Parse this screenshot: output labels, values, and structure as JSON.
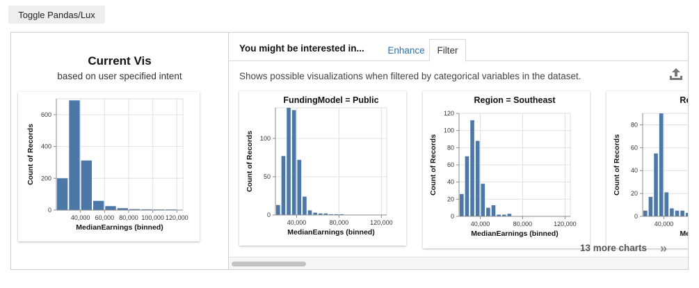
{
  "toolbar": {
    "toggle_label": "Toggle Pandas/Lux"
  },
  "current_vis": {
    "title": "Current Vis",
    "subtitle": "based on user specified intent"
  },
  "recommendations": {
    "heading": "You might be interested in...",
    "tabs": [
      {
        "label": "Enhance",
        "active": false
      },
      {
        "label": "Filter",
        "active": true
      }
    ],
    "description": "Shows possible visualizations when filtered by categorical variables in the dataset.",
    "export_icon": "upload-icon",
    "more_label": "13 more charts",
    "more_icon": "double-chevron-right-icon"
  },
  "colors": {
    "bar": "#4c78a8",
    "tab_link": "#2c6fae",
    "grid": "#e0e0e0"
  },
  "chart_data": [
    {
      "type": "bar",
      "title": "",
      "xlabel": "MedianEarnings (binned)",
      "ylabel": "Count of Records",
      "xlim": [
        20000,
        125000
      ],
      "ylim": [
        0,
        700
      ],
      "bin_width": 10000,
      "x_ticks": [
        "40,000",
        "60,000",
        "80,000",
        "100,000",
        "120,000"
      ],
      "x_tick_values": [
        40000,
        60000,
        80000,
        100000,
        120000
      ],
      "y_ticks": [
        "0",
        "200",
        "400",
        "600"
      ],
      "y_tick_values": [
        0,
        200,
        400,
        600
      ],
      "x": [
        25000,
        35000,
        45000,
        55000,
        65000,
        75000,
        85000,
        95000,
        105000,
        115000
      ],
      "values": [
        200,
        690,
        312,
        58,
        25,
        12,
        6,
        5,
        4,
        4
      ]
    },
    {
      "type": "bar",
      "title": "FundingModel = Public",
      "xlabel": "MedianEarnings (binned)",
      "ylabel": "Count of Records",
      "xlim": [
        20000,
        125000
      ],
      "ylim": [
        0,
        140
      ],
      "bin_width": 5000,
      "x_ticks": [
        "40,000",
        "80,000",
        "120,000"
      ],
      "x_tick_values": [
        40000,
        80000,
        120000
      ],
      "y_ticks": [
        "0",
        "50",
        "100"
      ],
      "y_tick_values": [
        0,
        50,
        100
      ],
      "x": [
        22500,
        27500,
        32500,
        37500,
        42500,
        47500,
        52500,
        57500,
        62500,
        67500,
        72500,
        77500,
        82500
      ],
      "values": [
        13,
        77,
        142,
        137,
        72,
        24,
        6,
        3,
        2,
        2,
        1,
        1,
        1
      ]
    },
    {
      "type": "bar",
      "title": "Region = Southeast",
      "xlabel": "MedianEarnings (binned)",
      "ylabel": "Count of Records",
      "xlim": [
        20000,
        125000
      ],
      "ylim": [
        0,
        120
      ],
      "bin_width": 5000,
      "x_ticks": [
        "40,000",
        "80,000",
        "120,000"
      ],
      "x_tick_values": [
        40000,
        80000,
        120000
      ],
      "y_ticks": [
        "0",
        "20",
        "40",
        "60",
        "80",
        "100",
        "120"
      ],
      "y_tick_values": [
        0,
        20,
        40,
        60,
        80,
        100,
        120
      ],
      "x": [
        22500,
        27500,
        32500,
        37500,
        42500,
        47500,
        52500,
        57500,
        62500,
        67500
      ],
      "values": [
        26,
        70,
        112,
        88,
        38,
        10,
        13,
        2,
        2,
        3
      ]
    },
    {
      "type": "bar",
      "title": "Region = ",
      "xlabel": "MedianEar",
      "ylabel": "Count of Records",
      "xlim": [
        20000,
        125000
      ],
      "ylim": [
        0,
        90
      ],
      "bin_width": 5000,
      "x_ticks": [
        "40,000"
      ],
      "x_tick_values": [
        40000
      ],
      "y_ticks": [
        "0",
        "20",
        "40",
        "60",
        "80"
      ],
      "y_tick_values": [
        0,
        20,
        40,
        60,
        80
      ],
      "x": [
        22500,
        27500,
        32500,
        37500,
        42500,
        47500,
        52500,
        57500,
        62500
      ],
      "values": [
        5,
        17,
        55,
        90,
        21,
        7,
        5,
        5,
        3
      ]
    }
  ]
}
